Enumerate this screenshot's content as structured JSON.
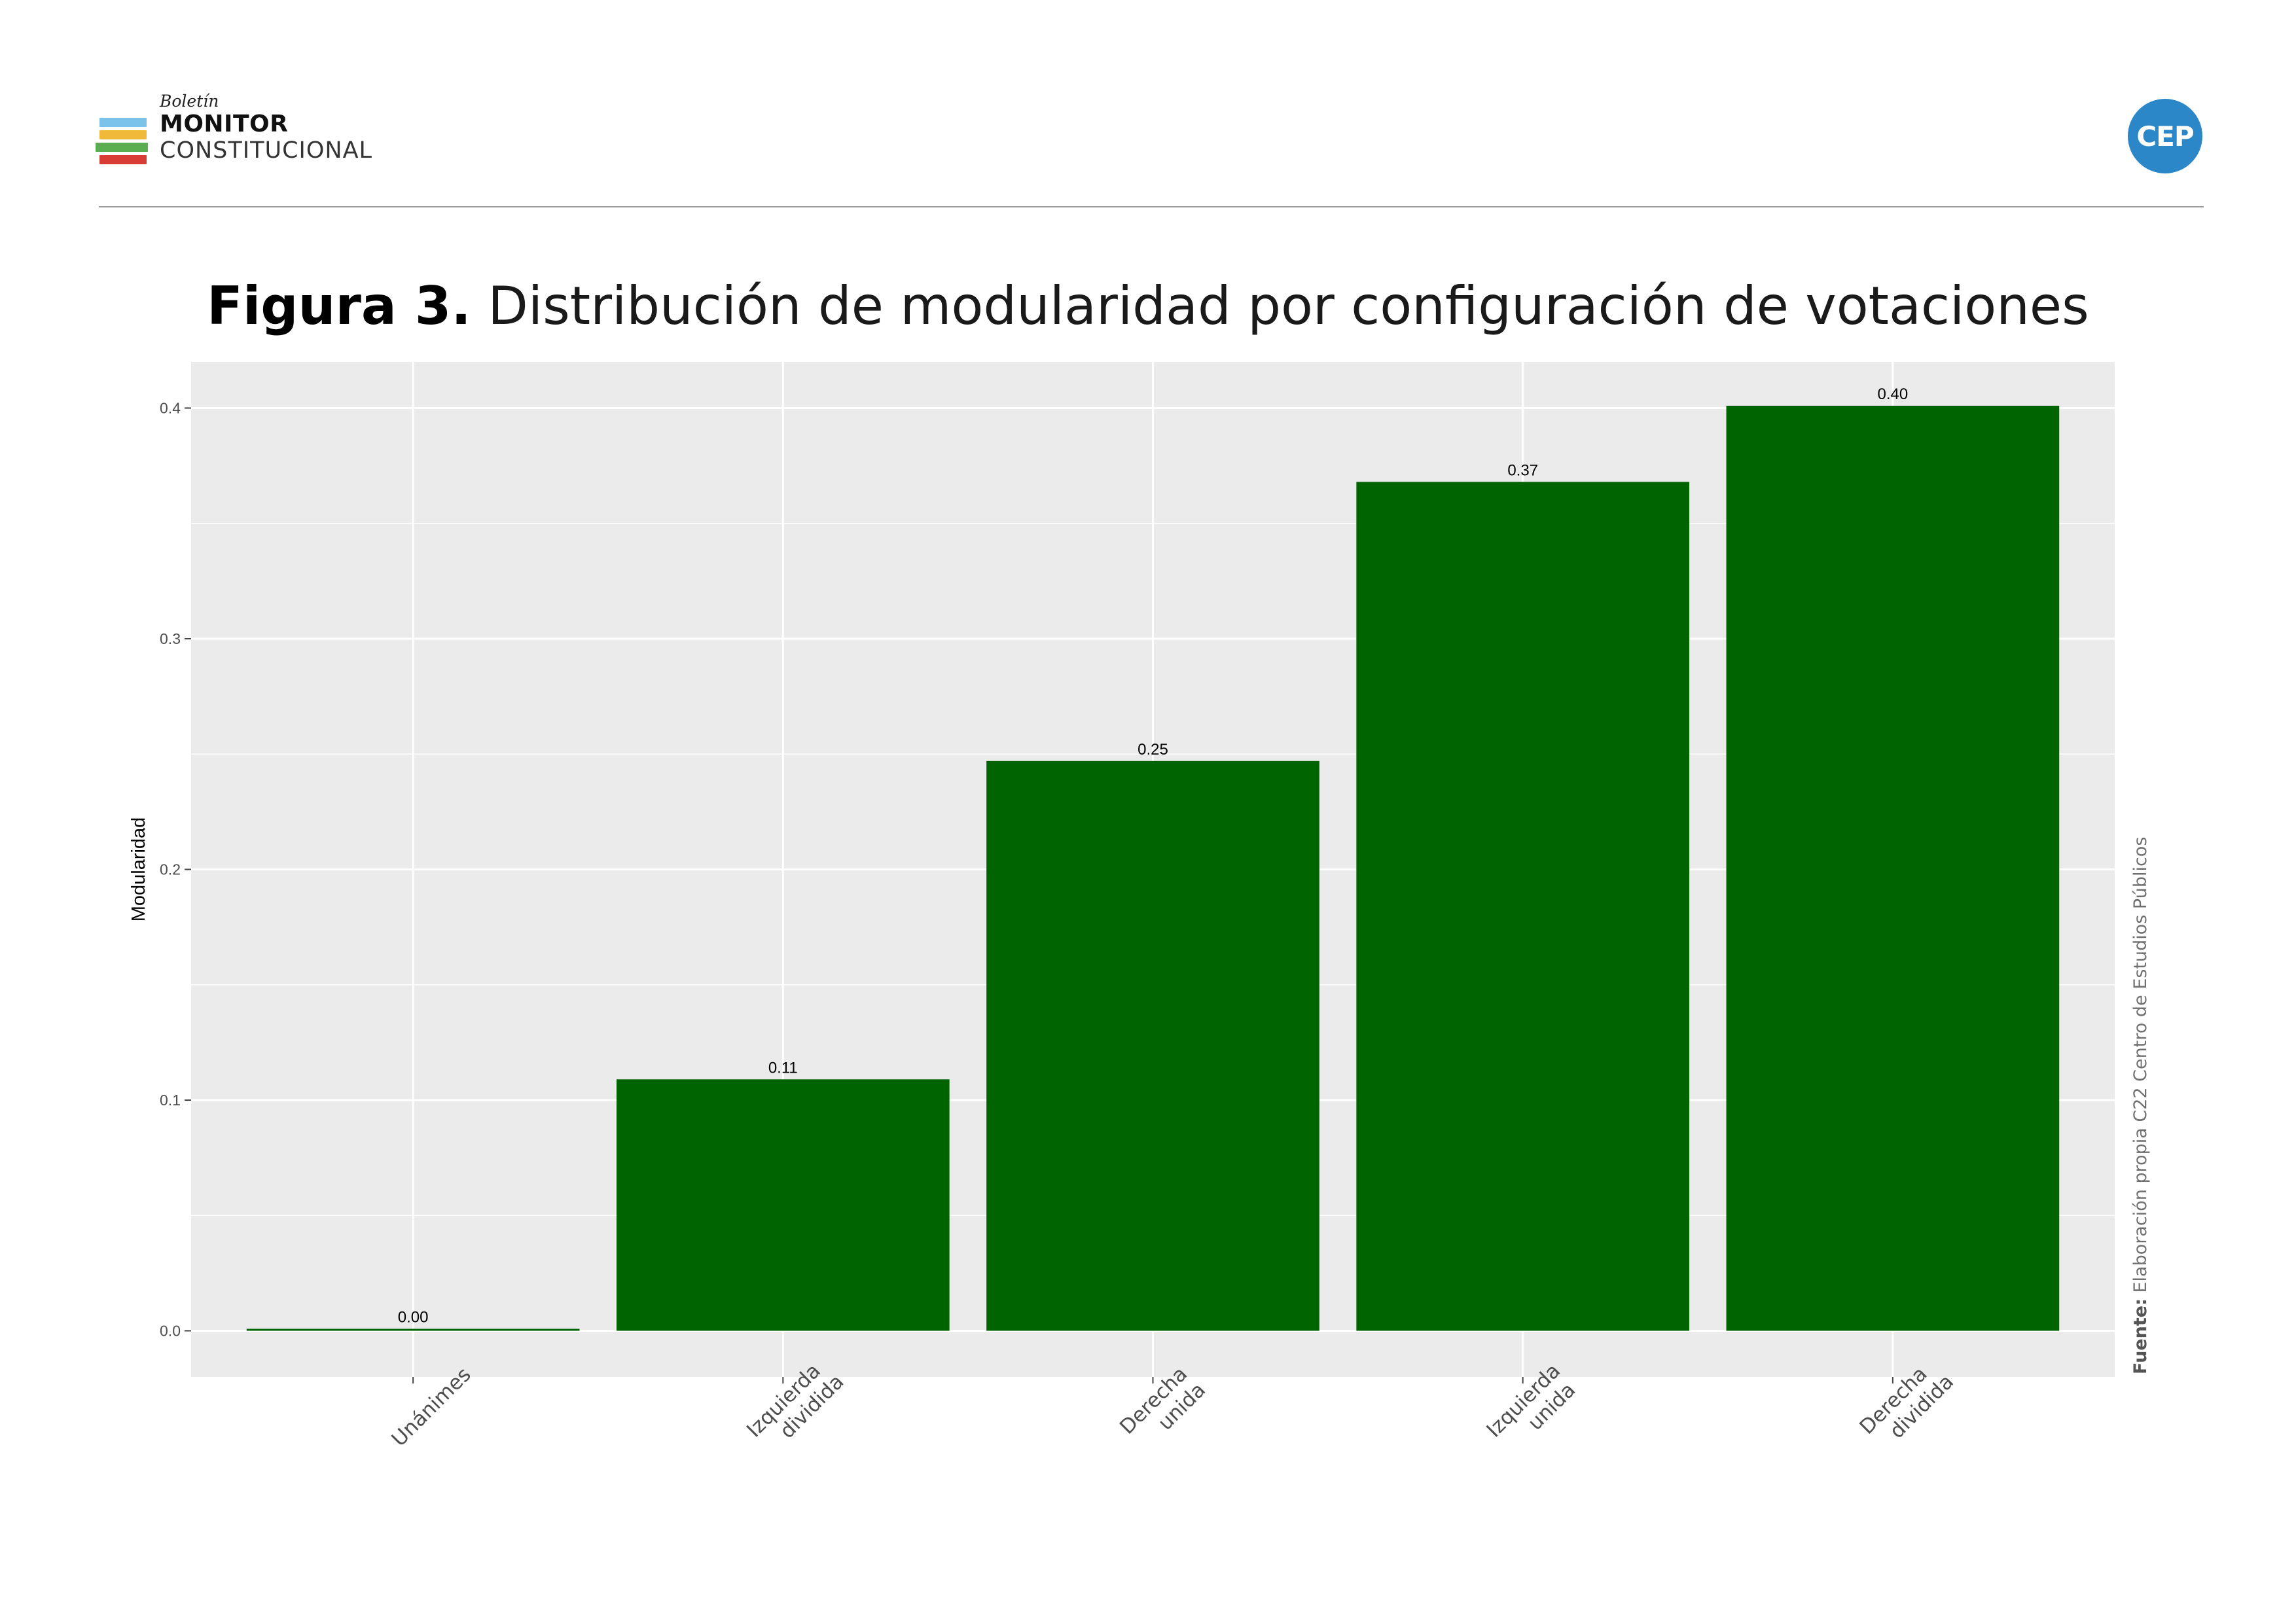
{
  "header": {
    "brand_kicker": "Boletín",
    "brand_line1": "MONITOR",
    "brand_line2": "CONSTITUCIONAL",
    "brand_bar_colors": [
      "#7cc3ea",
      "#f0b93a",
      "#5aae4f",
      "#d93b35"
    ],
    "cep_logo_text": "CEP",
    "cep_logo_color": "#2b87c8"
  },
  "figure": {
    "label": "Figura 3.",
    "title": "Distribución de modularidad por configuración de votaciones"
  },
  "source": {
    "label": "Fuente:",
    "text": "Elaboración propia C22 Centro de Estudios Públicos"
  },
  "chart_data": {
    "type": "bar",
    "ylabel": "Modularidad",
    "categories": [
      [
        "Unánimes"
      ],
      [
        "Izquierda",
        "dividida"
      ],
      [
        "Derecha",
        "unida"
      ],
      [
        "Izquierda",
        "unida"
      ],
      [
        "Derecha",
        "dividida"
      ]
    ],
    "values": [
      0.0,
      0.109,
      0.247,
      0.368,
      0.401
    ],
    "data_labels": [
      "0.00",
      "0.11",
      "0.25",
      "0.37",
      "0.40"
    ],
    "ylim": [
      -0.02,
      0.42
    ],
    "yticks": [
      0.0,
      0.1,
      0.2,
      0.3,
      0.4
    ],
    "ytick_labels": [
      "0.0",
      "0.1",
      "0.2",
      "0.3",
      "0.4"
    ],
    "grid": true,
    "bar_color": "#006400",
    "panel_color": "#ebebeb",
    "grid_color": "#ffffff"
  }
}
